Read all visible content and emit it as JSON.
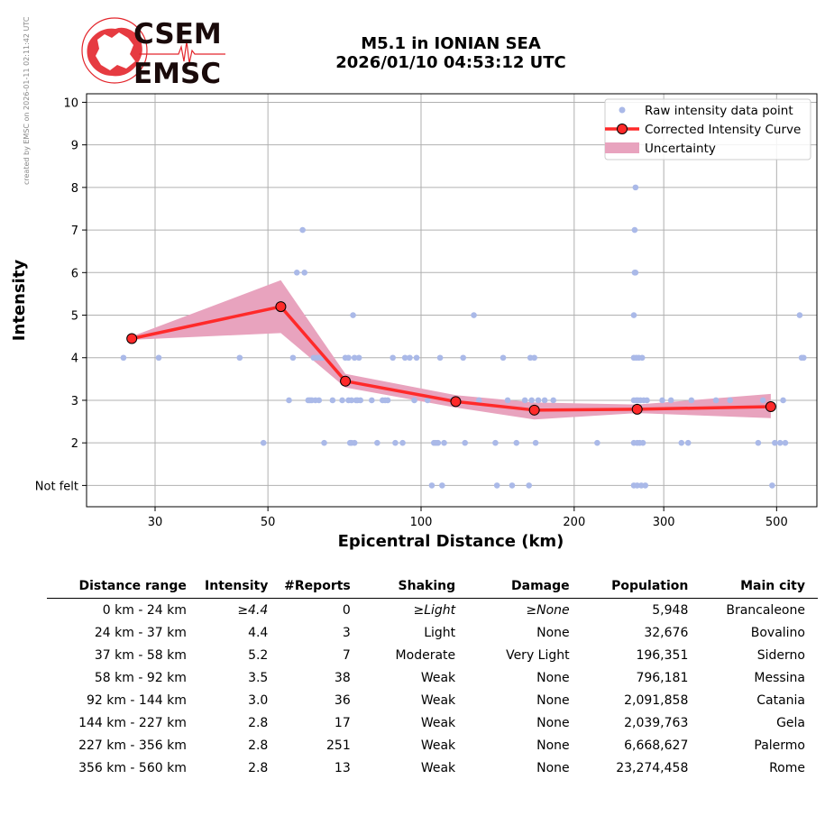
{
  "side_note": "created by EMSC on 2026-01-11 02:11:42 UTC",
  "logo": {
    "line1": "CSEM",
    "line2": "EMSC",
    "colors": {
      "red": "#e3262c",
      "dark": "#1a0a0a"
    }
  },
  "title": {
    "line1": "M5.1 in IONIAN SEA",
    "line2": "2026/01/10 04:53:12 UTC"
  },
  "chart_data": {
    "type": "scatter",
    "xlabel": "Epicentral Distance (km)",
    "ylabel": "Intensity",
    "x_scale": "log",
    "xlim": [
      22,
      600
    ],
    "ylim": [
      0.5,
      10.2
    ],
    "x_ticks": [
      30,
      50,
      100,
      200,
      300,
      500
    ],
    "y_ticks": [
      {
        "value": 1,
        "label": "Not felt"
      },
      {
        "value": 2,
        "label": "2"
      },
      {
        "value": 3,
        "label": "3"
      },
      {
        "value": 4,
        "label": "4"
      },
      {
        "value": 5,
        "label": "5"
      },
      {
        "value": 6,
        "label": "6"
      },
      {
        "value": 7,
        "label": "7"
      },
      {
        "value": 8,
        "label": "8"
      },
      {
        "value": 9,
        "label": "9"
      },
      {
        "value": 10,
        "label": "10"
      }
    ],
    "grid": true,
    "legend_position": "top-right",
    "legend": [
      "Raw intensity data point",
      "Corrected Intensity Curve",
      "Uncertainty"
    ],
    "colors": {
      "raw": "#aab9e8",
      "curve": "#ff2a2a",
      "marker_edge": "#000000",
      "band": "#e8a3be"
    },
    "raw_points": [
      [
        26,
        4
      ],
      [
        30.5,
        4
      ],
      [
        44,
        4
      ],
      [
        49,
        2
      ],
      [
        55,
        3
      ],
      [
        56,
        4
      ],
      [
        57,
        6
      ],
      [
        58.5,
        7
      ],
      [
        59,
        6
      ],
      [
        60,
        3
      ],
      [
        60.5,
        3
      ],
      [
        61,
        3
      ],
      [
        61.5,
        4
      ],
      [
        62,
        3
      ],
      [
        62.5,
        4
      ],
      [
        63,
        3
      ],
      [
        63.5,
        4
      ],
      [
        64,
        4
      ],
      [
        64.5,
        2
      ],
      [
        67,
        3
      ],
      [
        70,
        3
      ],
      [
        71,
        4
      ],
      [
        72,
        4
      ],
      [
        72.5,
        2
      ],
      [
        73,
        3
      ],
      [
        73.5,
        5
      ],
      [
        74,
        4
      ],
      [
        74.5,
        3
      ],
      [
        75,
        3
      ],
      [
        75.5,
        4
      ],
      [
        76,
        3
      ],
      [
        73,
        2
      ],
      [
        74,
        2
      ],
      [
        72,
        3
      ],
      [
        80,
        3
      ],
      [
        82,
        2
      ],
      [
        84,
        3
      ],
      [
        85,
        3
      ],
      [
        86,
        3
      ],
      [
        88,
        4
      ],
      [
        89,
        2
      ],
      [
        92,
        2
      ],
      [
        93,
        4
      ],
      [
        95,
        4
      ],
      [
        97,
        3
      ],
      [
        98,
        4
      ],
      [
        103,
        3
      ],
      [
        105,
        1
      ],
      [
        106,
        2
      ],
      [
        107,
        2
      ],
      [
        108,
        2
      ],
      [
        109,
        4
      ],
      [
        110,
        1
      ],
      [
        111,
        2
      ],
      [
        115,
        3
      ],
      [
        118,
        3
      ],
      [
        121,
        4
      ],
      [
        122,
        2
      ],
      [
        127,
        5
      ],
      [
        130,
        3
      ],
      [
        140,
        2
      ],
      [
        141,
        1
      ],
      [
        145,
        4
      ],
      [
        148,
        3
      ],
      [
        151,
        1
      ],
      [
        154,
        2
      ],
      [
        160,
        3
      ],
      [
        163,
        1
      ],
      [
        164,
        4
      ],
      [
        165,
        3
      ],
      [
        167,
        4
      ],
      [
        168,
        2
      ],
      [
        170,
        3
      ],
      [
        175,
        3
      ],
      [
        182,
        3
      ],
      [
        222,
        2
      ],
      [
        262,
        1
      ],
      [
        262,
        2
      ],
      [
        262,
        3
      ],
      [
        262,
        4
      ],
      [
        262,
        5
      ],
      [
        263,
        6
      ],
      [
        263,
        7
      ],
      [
        264,
        8
      ],
      [
        264,
        6
      ],
      [
        265,
        3
      ],
      [
        265,
        4
      ],
      [
        266,
        2
      ],
      [
        266,
        1
      ],
      [
        267,
        3
      ],
      [
        268,
        4
      ],
      [
        269,
        2
      ],
      [
        270,
        3
      ],
      [
        271,
        1
      ],
      [
        272,
        4
      ],
      [
        273,
        2
      ],
      [
        274,
        3
      ],
      [
        276,
        1
      ],
      [
        278,
        3
      ],
      [
        298,
        3
      ],
      [
        310,
        3
      ],
      [
        325,
        2
      ],
      [
        335,
        2
      ],
      [
        340,
        3
      ],
      [
        380,
        3
      ],
      [
        405,
        3
      ],
      [
        460,
        2
      ],
      [
        470,
        3
      ],
      [
        490,
        1
      ],
      [
        496,
        2
      ],
      [
        508,
        2
      ],
      [
        515,
        3
      ],
      [
        520,
        2
      ],
      [
        555,
        5
      ],
      [
        560,
        4
      ],
      [
        565,
        4
      ]
    ],
    "curve": {
      "x": [
        27,
        53,
        71,
        117,
        167,
        266,
        487
      ],
      "y": [
        4.45,
        5.2,
        3.45,
        2.97,
        2.77,
        2.79,
        2.85
      ]
    },
    "band": {
      "upper": [
        4.5,
        5.82,
        3.62,
        3.12,
        2.95,
        2.9,
        3.15
      ],
      "lower": [
        4.42,
        4.58,
        3.3,
        2.83,
        2.55,
        2.7,
        2.58
      ]
    }
  },
  "table": {
    "headers": [
      "Distance range",
      "Intensity",
      "#Reports",
      "Shaking",
      "Damage",
      "Population",
      "Main city"
    ],
    "rows": [
      {
        "range": "0 km -   24 km",
        "intensity": "≥4.4",
        "reports": "0",
        "shaking": "≥Light",
        "damage": "≥None",
        "population": "5,948",
        "city": "Brancaleone"
      },
      {
        "range": "24 km -   37 km",
        "intensity": "4.4",
        "reports": "3",
        "shaking": "Light",
        "damage": "None",
        "population": "32,676",
        "city": "Bovalino"
      },
      {
        "range": "37 km -   58 km",
        "intensity": "5.2",
        "reports": "7",
        "shaking": "Moderate",
        "damage": "Very Light",
        "population": "196,351",
        "city": "Siderno"
      },
      {
        "range": "58 km -   92 km",
        "intensity": "3.5",
        "reports": "38",
        "shaking": "Weak",
        "damage": "None",
        "population": "796,181",
        "city": "Messina"
      },
      {
        "range": "92 km -  144 km",
        "intensity": "3.0",
        "reports": "36",
        "shaking": "Weak",
        "damage": "None",
        "population": "2,091,858",
        "city": "Catania"
      },
      {
        "range": "144 km -  227 km",
        "intensity": "2.8",
        "reports": "17",
        "shaking": "Weak",
        "damage": "None",
        "population": "2,039,763",
        "city": "Gela"
      },
      {
        "range": "227 km -  356 km",
        "intensity": "2.8",
        "reports": "251",
        "shaking": "Weak",
        "damage": "None",
        "population": "6,668,627",
        "city": "Palermo"
      },
      {
        "range": "356 km -  560 km",
        "intensity": "2.8",
        "reports": "13",
        "shaking": "Weak",
        "damage": "None",
        "population": "23,274,458",
        "city": "Rome"
      }
    ]
  }
}
